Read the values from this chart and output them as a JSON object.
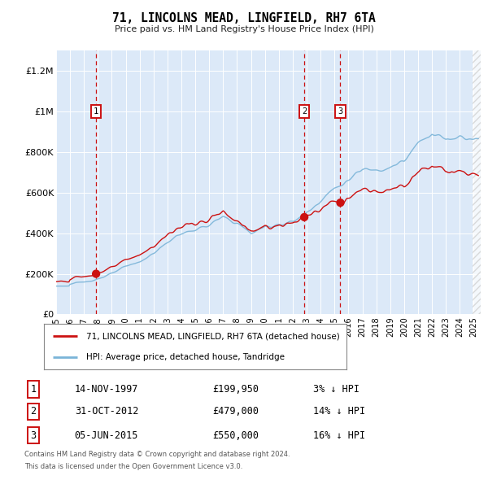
{
  "title": "71, LINCOLNS MEAD, LINGFIELD, RH7 6TA",
  "subtitle": "Price paid vs. HM Land Registry's House Price Index (HPI)",
  "ylim": [
    0,
    1300000
  ],
  "yticks": [
    0,
    200000,
    400000,
    600000,
    800000,
    1000000,
    1200000
  ],
  "ytick_labels": [
    "£0",
    "£200K",
    "£400K",
    "£600K",
    "£800K",
    "£1M",
    "£1.2M"
  ],
  "plot_bg_color": "#dce9f8",
  "hpi_color": "#7ab4d8",
  "price_color": "#cc1111",
  "sale_marker_color": "#cc1111",
  "legend_label_price": "71, LINCOLNS MEAD, LINGFIELD, RH7 6TA (detached house)",
  "legend_label_hpi": "HPI: Average price, detached house, Tandridge",
  "sales": [
    {
      "num": 1,
      "date_label": "14-NOV-1997",
      "price_label": "£199,950",
      "pct_label": "3% ↓ HPI",
      "year": 1997.87,
      "price": 199950
    },
    {
      "num": 2,
      "date_label": "31-OCT-2012",
      "price_label": "£479,000",
      "pct_label": "14% ↓ HPI",
      "year": 2012.83,
      "price": 479000
    },
    {
      "num": 3,
      "date_label": "05-JUN-2015",
      "price_label": "£550,000",
      "pct_label": "16% ↓ HPI",
      "year": 2015.42,
      "price": 550000
    }
  ],
  "sale_vline_color": "#cc1111",
  "footnote1": "Contains HM Land Registry data © Crown copyright and database right 2024.",
  "footnote2": "This data is licensed under the Open Government Licence v3.0.",
  "xmin": 1995.0,
  "xmax": 2025.5,
  "xtick_years": [
    1995,
    1996,
    1997,
    1998,
    1999,
    2000,
    2001,
    2002,
    2003,
    2004,
    2005,
    2006,
    2007,
    2008,
    2009,
    2010,
    2011,
    2012,
    2013,
    2014,
    2015,
    2016,
    2017,
    2018,
    2019,
    2020,
    2021,
    2022,
    2023,
    2024,
    2025
  ]
}
